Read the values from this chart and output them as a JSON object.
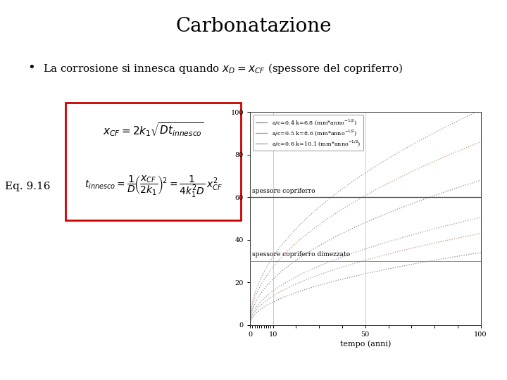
{
  "title": "Carbonatazione",
  "eq_label": "Eq. 9.16",
  "background_color": "#ffffff",
  "title_fontsize": 20,
  "k_values": [
    6.8,
    8.6,
    10.1
  ],
  "ac_values": [
    0.4,
    0.5,
    0.6
  ],
  "line_colors_solid": [
    "#888888",
    "#c09080",
    "#9898b8"
  ],
  "line_colors_dash": [
    "#888888",
    "#c09080",
    "#9898b8"
  ],
  "hline_full": 60,
  "hline_half": 30,
  "xlabel": "tempo (anni)",
  "ylim": [
    0,
    100
  ],
  "xlim_log": [
    0.5,
    100
  ],
  "spessore_text": "spessore copriferro",
  "spessore_dim_text": "spessore copriferro dimezzato",
  "formula_box_color": "#cc0000",
  "formula_line1": "$x_{CF} = 2k_1\\sqrt{Dt_{innesco}}$",
  "formula_line2": "$t_{innesco} = \\dfrac{1}{D}\\!\\left(\\dfrac{x_{CF}}{2k_1}\\right)^{\\!2} = \\dfrac{1}{4k_1^2 D}\\,x_{CF}^2$",
  "legend_labels": [
    "a/c=0.4 k=6.8 (mm*anno$^{-1/2}$)",
    "a/c=0.5 k=8.6 (mm*anno$^{-1/2}$)",
    "a/c=0.6 k=10.1 (mm*anno$^{-1/2}$)"
  ],
  "bullet_line": "La corrosione si innesca quando $x_D{=}x_{CF}$ (spessore del copriferro)"
}
